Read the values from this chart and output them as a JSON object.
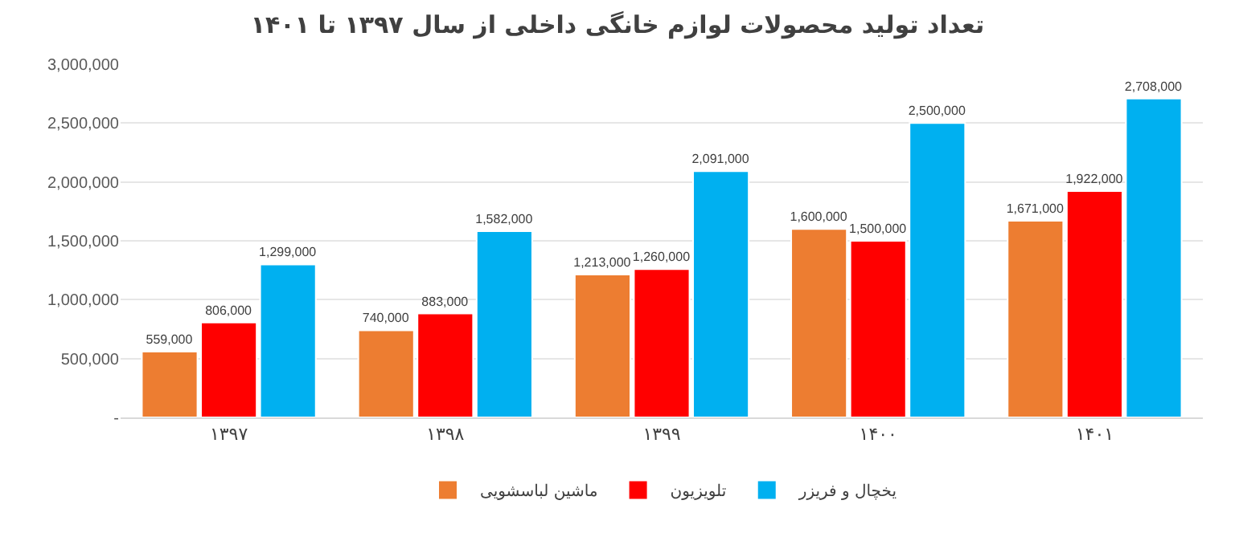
{
  "chart_data": {
    "type": "bar",
    "title": "تعداد تولید محصولات لوازم خانگی داخلی از سال ۱۳۹۷ تا ۱۴۰۱",
    "categories": [
      "۱۳۹۷",
      "۱۳۹۸",
      "۱۳۹۹",
      "۱۴۰۰",
      "۱۴۰۱"
    ],
    "series": [
      {
        "name": "ماشین لباسشویی",
        "color": "#ed7d31",
        "values": [
          559000,
          740000,
          1213000,
          1600000,
          1671000
        ],
        "value_labels": [
          "559,000",
          "740,000",
          "1,213,000",
          "1,600,000",
          "1,671,000"
        ]
      },
      {
        "name": "تلویزیون",
        "color": "#ff0000",
        "values": [
          806000,
          883000,
          1260000,
          1500000,
          1922000
        ],
        "value_labels": [
          "806,000",
          "883,000",
          "1,260,000",
          "1,500,000",
          "1,922,000"
        ]
      },
      {
        "name": "یخچال و فریزر",
        "color": "#00b0f0",
        "values": [
          1299000,
          1582000,
          2091000,
          2500000,
          2708000
        ],
        "value_labels": [
          "1,299,000",
          "1,582,000",
          "2,091,000",
          "2,500,000",
          "2,708,000"
        ]
      }
    ],
    "ylim": [
      0,
      3000000
    ],
    "yticks": [
      {
        "value": 0,
        "label": "-"
      },
      {
        "value": 500000,
        "label": "500,000"
      },
      {
        "value": 1000000,
        "label": "1,000,000"
      },
      {
        "value": 1500000,
        "label": "1,500,000"
      },
      {
        "value": 2000000,
        "label": "2,000,000"
      },
      {
        "value": 2500000,
        "label": "2,500,000"
      },
      {
        "value": 3000000,
        "label": "3,000,000"
      }
    ],
    "grid": "y",
    "legend": "bottom"
  }
}
